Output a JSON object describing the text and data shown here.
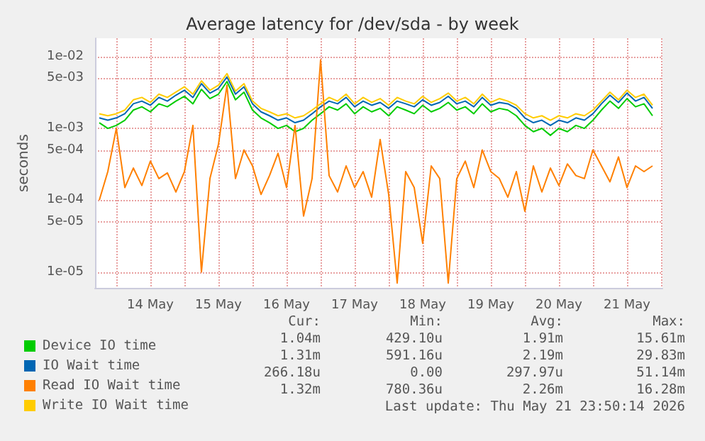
{
  "chart_data": {
    "type": "line",
    "title": "Average latency for /dev/sda - by week",
    "ylabel": "seconds",
    "x": [
      "2026-05-13T18:00",
      "2026-05-13T21:00",
      "2026-05-14T00:00",
      "2026-05-14T03:00",
      "2026-05-14T06:00",
      "2026-05-14T09:00",
      "2026-05-14T12:00",
      "2026-05-14T15:00",
      "2026-05-14T18:00",
      "2026-05-14T21:00",
      "2026-05-15T00:00",
      "2026-05-15T03:00",
      "2026-05-15T06:00",
      "2026-05-15T09:00",
      "2026-05-15T12:00",
      "2026-05-15T15:00",
      "2026-05-15T18:00",
      "2026-05-15T21:00",
      "2026-05-16T00:00",
      "2026-05-16T03:00",
      "2026-05-16T06:00",
      "2026-05-16T09:00",
      "2026-05-16T12:00",
      "2026-05-16T15:00",
      "2026-05-16T18:00",
      "2026-05-16T21:00",
      "2026-05-17T00:00",
      "2026-05-17T03:00",
      "2026-05-17T06:00",
      "2026-05-17T09:00",
      "2026-05-17T12:00",
      "2026-05-17T15:00",
      "2026-05-17T18:00",
      "2026-05-17T21:00",
      "2026-05-18T00:00",
      "2026-05-18T03:00",
      "2026-05-18T06:00",
      "2026-05-18T09:00",
      "2026-05-18T12:00",
      "2026-05-18T15:00",
      "2026-05-18T18:00",
      "2026-05-18T21:00",
      "2026-05-19T00:00",
      "2026-05-19T03:00",
      "2026-05-19T06:00",
      "2026-05-19T09:00",
      "2026-05-19T12:00",
      "2026-05-19T15:00",
      "2026-05-19T18:00",
      "2026-05-19T21:00",
      "2026-05-20T00:00",
      "2026-05-20T03:00",
      "2026-05-20T06:00",
      "2026-05-20T09:00",
      "2026-05-20T12:00",
      "2026-05-20T15:00",
      "2026-05-20T18:00",
      "2026-05-20T21:00",
      "2026-05-21T00:00",
      "2026-05-21T03:00",
      "2026-05-21T06:00",
      "2026-05-21T09:00",
      "2026-05-21T12:00",
      "2026-05-21T15:00",
      "2026-05-21T18:00",
      "2026-05-21T21:00"
    ],
    "series": [
      {
        "name": "Device IO time",
        "color": "#00cc00",
        "values": [
          0.0012,
          0.001,
          0.0011,
          0.0013,
          0.0018,
          0.002,
          0.0017,
          0.0022,
          0.002,
          0.0024,
          0.0028,
          0.0022,
          0.0035,
          0.0026,
          0.003,
          0.0045,
          0.0025,
          0.0032,
          0.0018,
          0.0014,
          0.0012,
          0.001,
          0.0011,
          0.0009,
          0.001,
          0.0013,
          0.0016,
          0.002,
          0.0018,
          0.0022,
          0.0016,
          0.002,
          0.0017,
          0.0019,
          0.0015,
          0.002,
          0.0018,
          0.0016,
          0.0021,
          0.0017,
          0.0019,
          0.0023,
          0.0018,
          0.002,
          0.0016,
          0.0022,
          0.0017,
          0.0019,
          0.0018,
          0.0015,
          0.0011,
          0.0009,
          0.001,
          0.0008,
          0.001,
          0.0009,
          0.0011,
          0.001,
          0.0013,
          0.0018,
          0.0024,
          0.0019,
          0.0026,
          0.002,
          0.0022,
          0.0015
        ]
      },
      {
        "name": "IO Wait time",
        "color": "#0066b3",
        "values": [
          0.0014,
          0.0013,
          0.0014,
          0.0016,
          0.0022,
          0.0024,
          0.0021,
          0.0027,
          0.0024,
          0.0029,
          0.0034,
          0.0027,
          0.0042,
          0.0031,
          0.0036,
          0.0052,
          0.003,
          0.0038,
          0.0022,
          0.0017,
          0.0015,
          0.0013,
          0.0014,
          0.0012,
          0.0013,
          0.0016,
          0.002,
          0.0024,
          0.0022,
          0.0027,
          0.002,
          0.0024,
          0.0021,
          0.0023,
          0.0019,
          0.0024,
          0.0022,
          0.002,
          0.0025,
          0.0021,
          0.0023,
          0.0028,
          0.0022,
          0.0024,
          0.002,
          0.0027,
          0.0021,
          0.0023,
          0.0022,
          0.0019,
          0.0014,
          0.0012,
          0.0013,
          0.0011,
          0.0013,
          0.0012,
          0.0014,
          0.0013,
          0.0016,
          0.0022,
          0.0029,
          0.0023,
          0.0031,
          0.0024,
          0.0027,
          0.0019
        ]
      },
      {
        "name": "Read IO Wait time",
        "color": "#ff8000",
        "values": [
          0.0001,
          0.00025,
          0.001,
          0.00015,
          0.00028,
          0.00016,
          0.00035,
          0.0002,
          0.00024,
          0.00013,
          0.00025,
          0.0011,
          1e-05,
          0.0002,
          0.0006,
          0.004,
          0.0002,
          0.0005,
          0.0003,
          0.00012,
          0.00022,
          0.00045,
          0.00015,
          0.0011,
          6e-05,
          0.0002,
          0.009,
          0.00022,
          0.00013,
          0.0003,
          0.00015,
          0.00025,
          0.00011,
          0.0007,
          0.00012,
          7e-06,
          0.00025,
          0.00015,
          2.5e-05,
          0.0003,
          0.0002,
          7e-06,
          0.0002,
          0.00035,
          0.00015,
          0.0005,
          0.00025,
          0.0002,
          0.00011,
          0.00025,
          7e-05,
          0.0003,
          0.00013,
          0.00028,
          0.00016,
          0.00032,
          0.00022,
          0.0002,
          0.0005,
          0.0003,
          0.00018,
          0.0004,
          0.00015,
          0.0003,
          0.00025,
          0.0003
        ]
      },
      {
        "name": "Write IO Wait time",
        "color": "#ffcc00",
        "values": [
          0.0016,
          0.0015,
          0.0016,
          0.0018,
          0.0025,
          0.0027,
          0.0023,
          0.003,
          0.0027,
          0.0032,
          0.0038,
          0.003,
          0.0046,
          0.0034,
          0.004,
          0.0058,
          0.0033,
          0.0042,
          0.0024,
          0.0019,
          0.0017,
          0.0015,
          0.0016,
          0.0014,
          0.0015,
          0.0018,
          0.0022,
          0.0027,
          0.0024,
          0.003,
          0.0022,
          0.0027,
          0.0023,
          0.0026,
          0.0021,
          0.0027,
          0.0024,
          0.0022,
          0.0028,
          0.0023,
          0.0026,
          0.0031,
          0.0024,
          0.0027,
          0.0022,
          0.003,
          0.0023,
          0.0026,
          0.0024,
          0.0021,
          0.0016,
          0.0014,
          0.0015,
          0.0013,
          0.0015,
          0.0014,
          0.0016,
          0.0015,
          0.0018,
          0.0024,
          0.0032,
          0.0025,
          0.0034,
          0.0027,
          0.003,
          0.0021
        ]
      }
    ],
    "xlim": [
      "2026-05-13T16:30",
      "2026-05-22T00:30"
    ],
    "xticks": [
      {
        "value": "2026-05-14T00:00",
        "label": null
      },
      {
        "value": "2026-05-14T12:00",
        "label": "14 May"
      },
      {
        "value": "2026-05-15T00:00",
        "label": null
      },
      {
        "value": "2026-05-15T12:00",
        "label": "15 May"
      },
      {
        "value": "2026-05-16T00:00",
        "label": null
      },
      {
        "value": "2026-05-16T12:00",
        "label": "16 May"
      },
      {
        "value": "2026-05-17T00:00",
        "label": null
      },
      {
        "value": "2026-05-17T12:00",
        "label": "17 May"
      },
      {
        "value": "2026-05-18T00:00",
        "label": null
      },
      {
        "value": "2026-05-18T12:00",
        "label": "18 May"
      },
      {
        "value": "2026-05-19T00:00",
        "label": null
      },
      {
        "value": "2026-05-19T12:00",
        "label": "19 May"
      },
      {
        "value": "2026-05-20T00:00",
        "label": null
      },
      {
        "value": "2026-05-20T12:00",
        "label": "20 May"
      },
      {
        "value": "2026-05-21T00:00",
        "label": null
      },
      {
        "value": "2026-05-21T12:00",
        "label": "21 May"
      },
      {
        "value": "2026-05-22T00:00",
        "label": null
      }
    ],
    "ylim": [
      6e-06,
      0.018
    ],
    "yticks": [
      {
        "value": 1e-05,
        "label": "1e-05"
      },
      {
        "value": 5e-05,
        "label": "5e-05"
      },
      {
        "value": 0.0001,
        "label": "1e-04"
      },
      {
        "value": 0.0005,
        "label": "5e-04"
      },
      {
        "value": 0.001,
        "label": "1e-03"
      },
      {
        "value": 0.005,
        "label": "5e-03"
      },
      {
        "value": 0.01,
        "label": "1e-02"
      }
    ],
    "log": true,
    "grid": true,
    "legend": "bottom",
    "marker": "none",
    "line_style": "solid",
    "annotations": [
      "Cur:",
      "Min:",
      "Avg:",
      "Max:",
      "1.04m",
      "429.10u",
      "1.91m",
      "15.61m",
      "1.31m",
      "591.16u",
      "2.19m",
      "29.83m",
      "266.18u",
      "0.00",
      "297.97u",
      "51.14m",
      "1.32m",
      "780.36u",
      "2.26m",
      "16.28m",
      "Last update: Thu May 21 23:50:14 2026"
    ]
  }
}
